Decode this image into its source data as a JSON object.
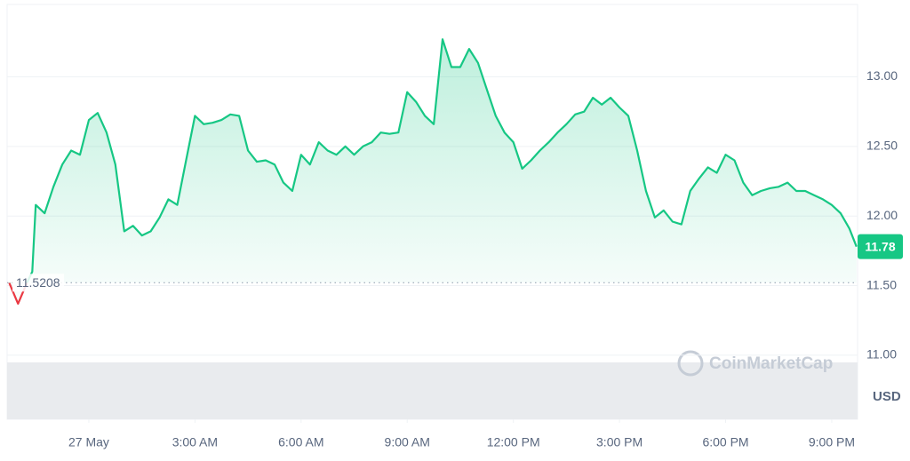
{
  "chart_data": {
    "type": "line",
    "x": [
      -2.25,
      -2,
      -1.75,
      -1.6,
      -1.5,
      -1.25,
      -1,
      -0.75,
      -0.5,
      -0.25,
      0,
      0.25,
      0.5,
      0.75,
      1,
      1.25,
      1.5,
      1.75,
      2,
      2.25,
      2.5,
      2.75,
      3,
      3.25,
      3.5,
      3.75,
      4,
      4.25,
      4.5,
      4.75,
      5,
      5.25,
      5.5,
      5.75,
      6,
      6.25,
      6.5,
      6.75,
      7,
      7.25,
      7.5,
      7.75,
      8,
      8.25,
      8.5,
      8.75,
      9,
      9.25,
      9.5,
      9.75,
      10,
      10.25,
      10.5,
      10.75,
      11,
      11.25,
      11.5,
      11.75,
      12,
      12.25,
      12.5,
      12.75,
      13,
      13.25,
      13.5,
      13.75,
      14,
      14.25,
      14.5,
      14.75,
      15,
      15.25,
      15.5,
      15.75,
      16,
      16.25,
      16.5,
      16.75,
      17,
      17.25,
      17.5,
      17.75,
      18,
      18.25,
      18.5,
      18.75,
      19,
      19.25,
      19.5,
      19.75,
      20,
      20.25,
      20.5,
      20.75,
      21,
      21.25,
      21.5,
      21.7
    ],
    "series": [
      {
        "color": "#16c784",
        "down_color": "#ea3943",
        "values": [
          11.52,
          11.37,
          11.52,
          11.6,
          12.08,
          12.02,
          12.21,
          12.37,
          12.47,
          12.44,
          12.69,
          12.74,
          12.6,
          12.37,
          11.89,
          11.93,
          11.86,
          11.89,
          11.99,
          12.12,
          12.08,
          12.4,
          12.72,
          12.66,
          12.67,
          12.69,
          12.73,
          12.72,
          12.47,
          12.39,
          12.4,
          12.37,
          12.24,
          12.18,
          12.44,
          12.37,
          12.53,
          12.47,
          12.44,
          12.5,
          12.44,
          12.5,
          12.53,
          12.6,
          12.59,
          12.6,
          12.89,
          12.82,
          12.72,
          12.66,
          13.27,
          13.07,
          13.07,
          13.2,
          13.1,
          12.91,
          12.72,
          12.6,
          12.53,
          12.34,
          12.4,
          12.47,
          12.53,
          12.6,
          12.66,
          12.73,
          12.75,
          12.85,
          12.8,
          12.85,
          12.78,
          12.72,
          12.47,
          12.18,
          11.99,
          12.04,
          11.96,
          11.94,
          12.18,
          12.27,
          12.35,
          12.31,
          12.44,
          12.4,
          12.24,
          12.15,
          12.18,
          12.2,
          12.21,
          12.24,
          12.18,
          12.18,
          12.15,
          12.12,
          12.08,
          12.02,
          11.91,
          11.78
        ]
      }
    ],
    "baseline": 11.5208,
    "xlim": [
      -2.31,
      21.73
    ],
    "xticks": [
      {
        "value": 0,
        "label": "27 May"
      },
      {
        "value": 3,
        "label": "3:00 AM"
      },
      {
        "value": 6,
        "label": "6:00 AM"
      },
      {
        "value": 9,
        "label": "9:00 AM"
      },
      {
        "value": 12,
        "label": "12:00 PM"
      },
      {
        "value": 15,
        "label": "3:00 PM"
      },
      {
        "value": 18,
        "label": "6:00 PM"
      },
      {
        "value": 21,
        "label": "9:00 PM"
      }
    ],
    "ylim": [
      10.54,
      13.52
    ],
    "yticks": [
      {
        "value": 11,
        "label": "11.00"
      },
      {
        "value": 11.5,
        "label": "11.50"
      },
      {
        "value": 12,
        "label": "12.00"
      },
      {
        "value": 12.5,
        "label": "12.50"
      },
      {
        "value": 13,
        "label": "13.00"
      }
    ],
    "y_axis_side": "right",
    "grid": true,
    "currency": "USD",
    "watermark": "CoinMarketCap"
  }
}
